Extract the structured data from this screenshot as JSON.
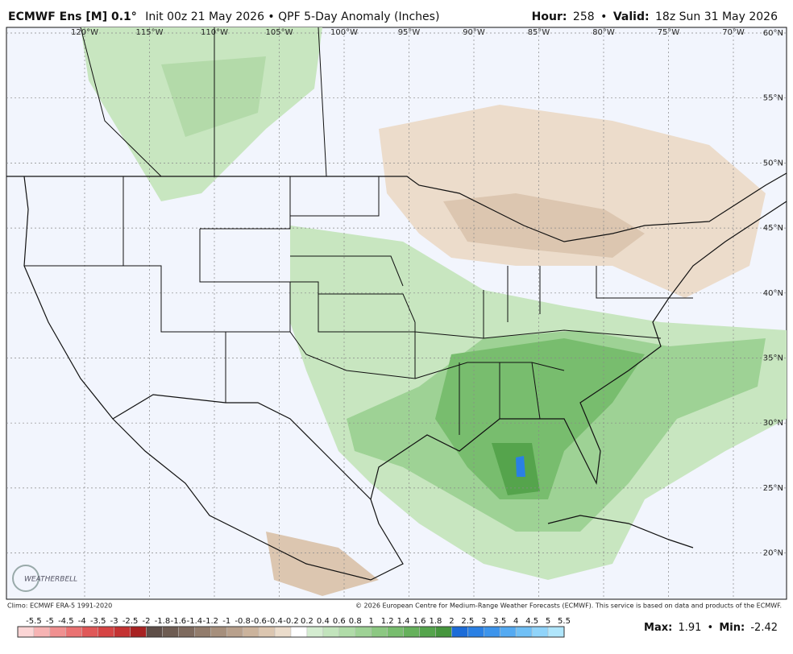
{
  "header": {
    "model": "ECMWF Ens [M] 0.1°",
    "subtitle": "Init 00z 21 May 2026 • QPF 5-Day Anomaly (Inches)",
    "hour_label": "Hour:",
    "hour": "258",
    "separator": "•",
    "valid_label": "Valid:",
    "valid": "18z Sun 31 May 2026"
  },
  "map": {
    "lon_labels": [
      "120°W",
      "115°W",
      "110°W",
      "105°W",
      "100°W",
      "95°W",
      "90°W",
      "85°W",
      "80°W",
      "75°W",
      "70°W"
    ],
    "lat_labels": [
      "60°N",
      "55°N",
      "50°N",
      "45°N",
      "40°N",
      "35°N",
      "30°N",
      "25°N",
      "20°N"
    ],
    "logo": "WEATHERBELL"
  },
  "footer": {
    "climo": "Climo: ECMWF ERA-5 1991-2020",
    "copyright": "© 2026 European Centre for Medium-Range Weather Forecasts (ECMWF). This service is based on data and products of the ECMWF."
  },
  "colorbar": {
    "labels": [
      -5.5,
      -5,
      -4.5,
      -4,
      -3.5,
      -3,
      -2.5,
      -2,
      -1.8,
      -1.6,
      -1.4,
      -1.2,
      -1,
      -0.8,
      -0.6,
      -0.4,
      -0.2,
      0.2,
      0.4,
      0.6,
      0.8,
      1,
      1.2,
      1.4,
      1.6,
      1.8,
      2,
      2.5,
      3,
      3.5,
      4,
      4.5,
      5,
      5.5
    ],
    "colors": [
      "#fbd5d5",
      "#f6b3b3",
      "#f09090",
      "#ea7272",
      "#e05858",
      "#d64444",
      "#c43232",
      "#a82222",
      "#5e4e48",
      "#6e5c52",
      "#7e6a5e",
      "#927c6c",
      "#a68f7c",
      "#b8a08c",
      "#cbb39c",
      "#dcc6b0",
      "#ebdccb",
      "#ffffff",
      "#d4ecd0",
      "#c2e4bc",
      "#b0dca8",
      "#9ed295",
      "#8cc882",
      "#78bd6e",
      "#66b15c",
      "#55a44c",
      "#46963e",
      "#1c6cd8",
      "#2a80e4",
      "#3c94ec",
      "#54aaf2",
      "#70c0f6",
      "#90d4fa",
      "#b0e6fc"
    ]
  },
  "stats": {
    "max_label": "Max:",
    "max": 1.91,
    "separator": "•",
    "min_label": "Min:",
    "min": -2.42
  }
}
